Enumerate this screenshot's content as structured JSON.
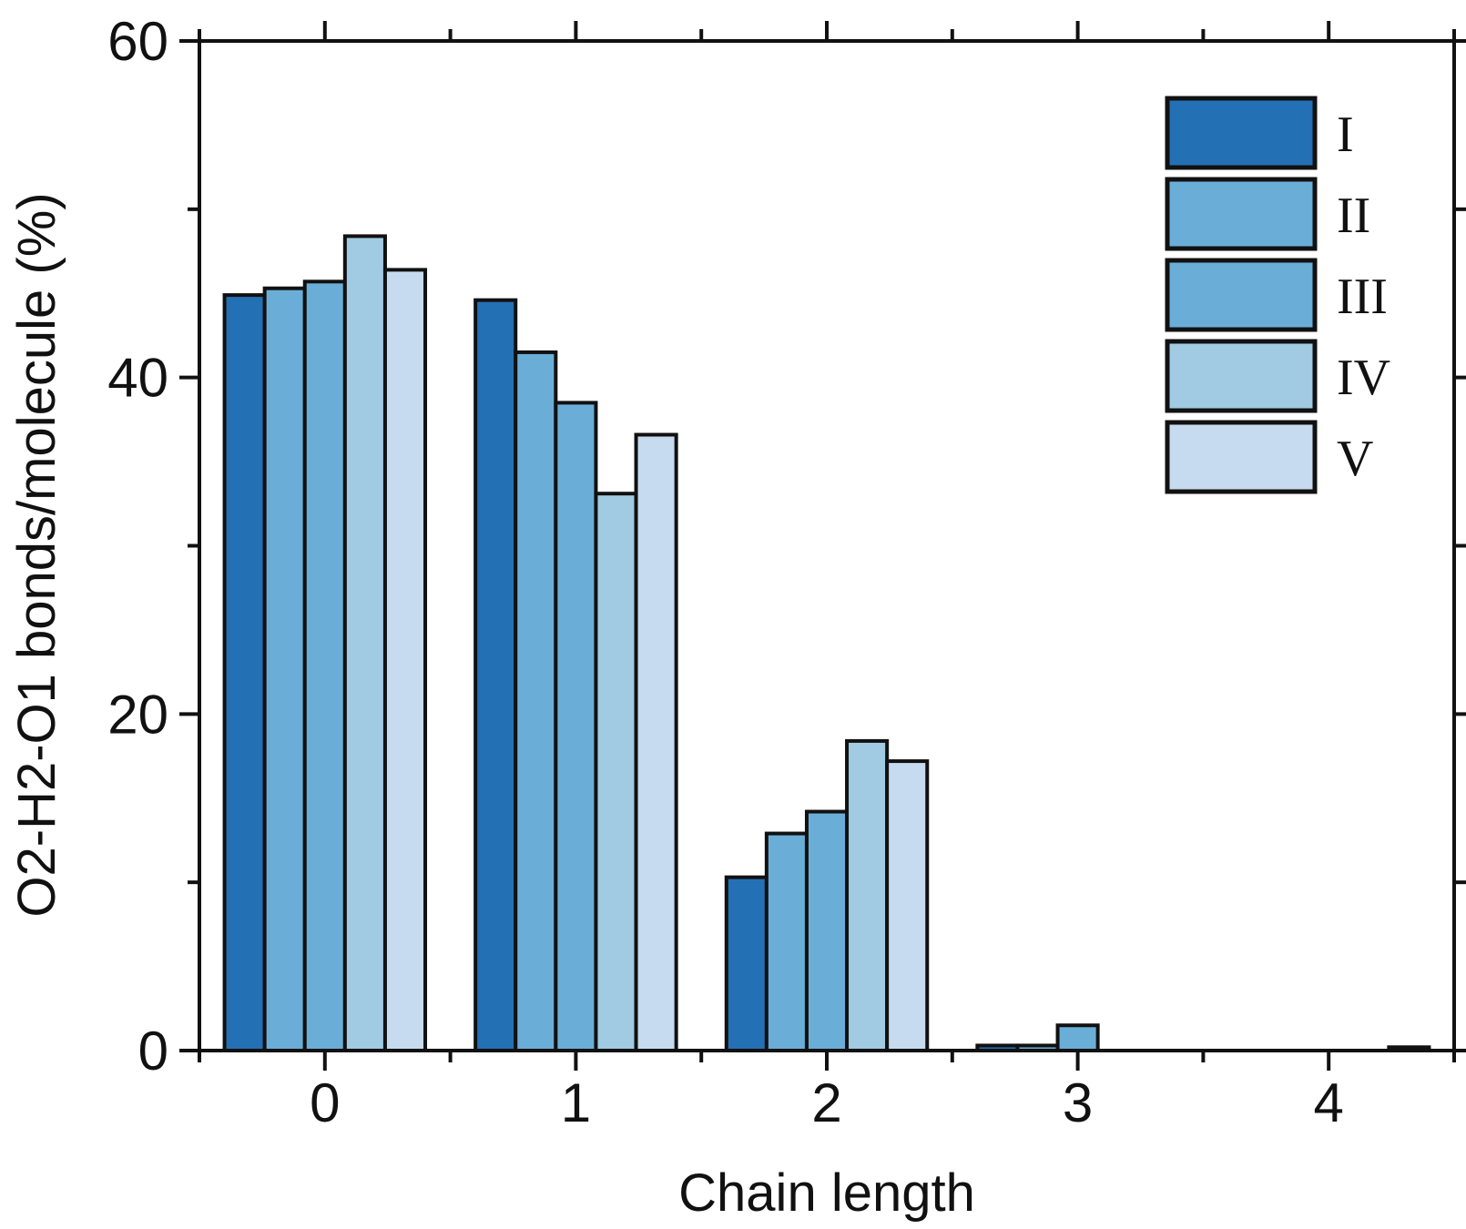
{
  "chart_data": {
    "type": "bar",
    "title": "",
    "xlabel": "Chain length",
    "ylabel": "O2-H2-O1 bonds/molecule (%)",
    "categories": [
      "0",
      "1",
      "2",
      "3",
      "4"
    ],
    "ylim": [
      0,
      60
    ],
    "yticks": [
      0,
      20,
      40,
      60
    ],
    "legend_position": "top-right",
    "series": [
      {
        "name": "I",
        "color": "#2470b4",
        "values": [
          44.9,
          44.6,
          10.3,
          0.3,
          0.0
        ]
      },
      {
        "name": "II",
        "color": "#6aaed8",
        "values": [
          45.3,
          41.5,
          12.9,
          0.3,
          0.0
        ]
      },
      {
        "name": "III",
        "color": "#6aaed8",
        "values": [
          45.7,
          38.5,
          14.2,
          1.5,
          0.0
        ]
      },
      {
        "name": "IV",
        "color": "#a0cbe2",
        "values": [
          48.4,
          33.1,
          18.4,
          0.0,
          0.0
        ]
      },
      {
        "name": "V",
        "color": "#c6dbef",
        "values": [
          46.4,
          36.6,
          17.2,
          0.0,
          0.2
        ]
      }
    ]
  }
}
